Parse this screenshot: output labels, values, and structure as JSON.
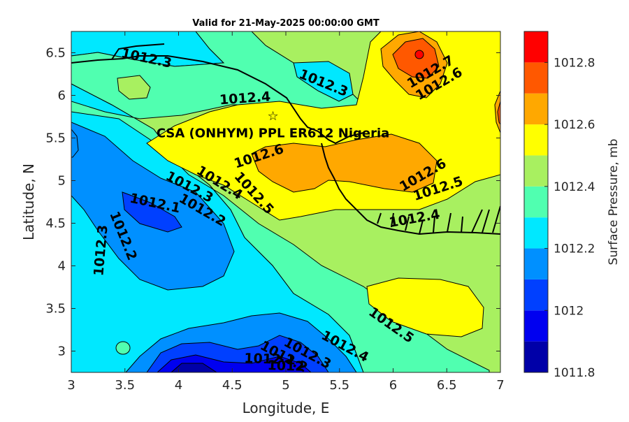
{
  "chart_data": {
    "type": "filled-contour-map",
    "title": "Valid for 21-May-2025 00:00:00 GMT",
    "xlabel": "Longitude, E",
    "ylabel": "Latitude, N",
    "xlim": [
      3,
      7
    ],
    "ylim": [
      2.75,
      6.75
    ],
    "xticks": [
      3,
      3.5,
      4,
      4.5,
      5,
      5.5,
      6,
      6.5,
      7
    ],
    "xtick_labels": [
      "3",
      "3.5",
      "4",
      "4.5",
      "5",
      "5.5",
      "6",
      "6.5",
      "7"
    ],
    "yticks": [
      3,
      3.5,
      4,
      4.5,
      5,
      5.5,
      6,
      6.5
    ],
    "ytick_labels": [
      "3",
      "3.5",
      "4",
      "4.5",
      "5",
      "5.5",
      "6",
      "6.5"
    ],
    "colorbar": {
      "label": "Surface Pressure, mb",
      "levels": [
        1011.8,
        1011.9,
        1012.0,
        1012.1,
        1012.2,
        1012.3,
        1012.4,
        1012.5,
        1012.6,
        1012.7,
        1012.8,
        1012.9
      ],
      "colors": [
        "#0000a8",
        "#0000f0",
        "#0040ff",
        "#0090ff",
        "#00e8ff",
        "#50ffb0",
        "#a8f060",
        "#ffff00",
        "#ffa800",
        "#ff5800",
        "#ff0000",
        "#a80000"
      ],
      "tick_values": [
        1011.8,
        1012.0,
        1012.2,
        1012.4,
        1012.6,
        1012.8
      ],
      "tick_labels": [
        "1011.8",
        "1012",
        "1012.2",
        "1012.4",
        "1012.6",
        "1012.8"
      ]
    },
    "contour_labels": [
      {
        "text": "1012.3",
        "lon": 3.7,
        "lat": 6.43,
        "rot": 12
      },
      {
        "text": "1012.4",
        "lon": 4.62,
        "lat": 5.96,
        "rot": -4
      },
      {
        "text": "1012.3",
        "lon": 5.35,
        "lat": 6.14,
        "rot": 22
      },
      {
        "text": "1012.7",
        "lon": 6.35,
        "lat": 6.27,
        "rot": -30
      },
      {
        "text": "1012.6",
        "lon": 6.43,
        "lat": 6.13,
        "rot": -30
      },
      {
        "text": "1012.6",
        "lon": 4.75,
        "lat": 5.28,
        "rot": -18
      },
      {
        "text": "1012.6",
        "lon": 6.28,
        "lat": 5.06,
        "rot": -30
      },
      {
        "text": "1012.5",
        "lon": 6.42,
        "lat": 4.9,
        "rot": -18
      },
      {
        "text": "1012.4",
        "lon": 6.2,
        "lat": 4.55,
        "rot": -10
      },
      {
        "text": "1012.4",
        "lon": 4.38,
        "lat": 4.97,
        "rot": 32
      },
      {
        "text": "1012.3",
        "lon": 4.1,
        "lat": 4.92,
        "rot": 28
      },
      {
        "text": "1012.5",
        "lon": 4.7,
        "lat": 4.85,
        "rot": 48
      },
      {
        "text": "1012.2",
        "lon": 4.22,
        "lat": 4.65,
        "rot": 30
      },
      {
        "text": "1012.1",
        "lon": 3.78,
        "lat": 4.73,
        "rot": 12
      },
      {
        "text": "1012.2",
        "lon": 3.48,
        "lat": 4.35,
        "rot": 68
      },
      {
        "text": "1012.3",
        "lon": 3.28,
        "lat": 4.18,
        "rot": -85
      },
      {
        "text": "1012.5",
        "lon": 5.98,
        "lat": 3.3,
        "rot": 35
      },
      {
        "text": "1012.4",
        "lon": 5.55,
        "lat": 3.05,
        "rot": 28
      },
      {
        "text": "1012.3",
        "lon": 5.2,
        "lat": 2.97,
        "rot": 28
      },
      {
        "text": "1012.2",
        "lon": 4.98,
        "lat": 2.93,
        "rot": 28
      },
      {
        "text": "1012.1",
        "lon": 4.85,
        "lat": 2.9,
        "rot": 2
      },
      {
        "text": "1012",
        "lon": 5.0,
        "lat": 2.82,
        "rot": 2
      }
    ],
    "annotations": [
      {
        "text": "CSA (ONHYM) PPL ER612 Nigeria",
        "lon": 4.88,
        "lat": 5.55
      },
      {
        "text": "☆",
        "lon": 4.88,
        "lat": 5.75
      }
    ],
    "grid": false
  }
}
